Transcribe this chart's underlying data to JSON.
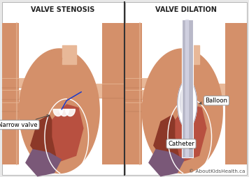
{
  "bg_color": "#e8e8e8",
  "panel_bg": "#ffffff",
  "border_color": "#aaaaaa",
  "title_left": "VALVE STENOSIS",
  "title_right": "VALVE DILATION",
  "title_fontsize": 7.0,
  "title_fontweight": "bold",
  "label_narrow": "Narrow valve",
  "label_balloon": "Balloon",
  "label_catheter": "Catheter",
  "label_fontsize": 6.2,
  "copyright": "© AboutKidsHealth.ca",
  "copyright_fontsize": 5.2,
  "skin_light": "#e8b898",
  "skin_mid": "#d4906a",
  "skin_dark": "#c07050",
  "heart_red": "#b85040",
  "heart_red_dark": "#8c3828",
  "heart_chamber_dark": "#7a3030",
  "purple_area": "#7a5878",
  "white_line": "#ffffff",
  "blue_valve": "#1a3acc",
  "catheter_gray": "#b8b8c8",
  "catheter_light": "#d8d8e8",
  "divider_color": "#333333",
  "label_border": "#999999",
  "arrow_color": "#444444"
}
